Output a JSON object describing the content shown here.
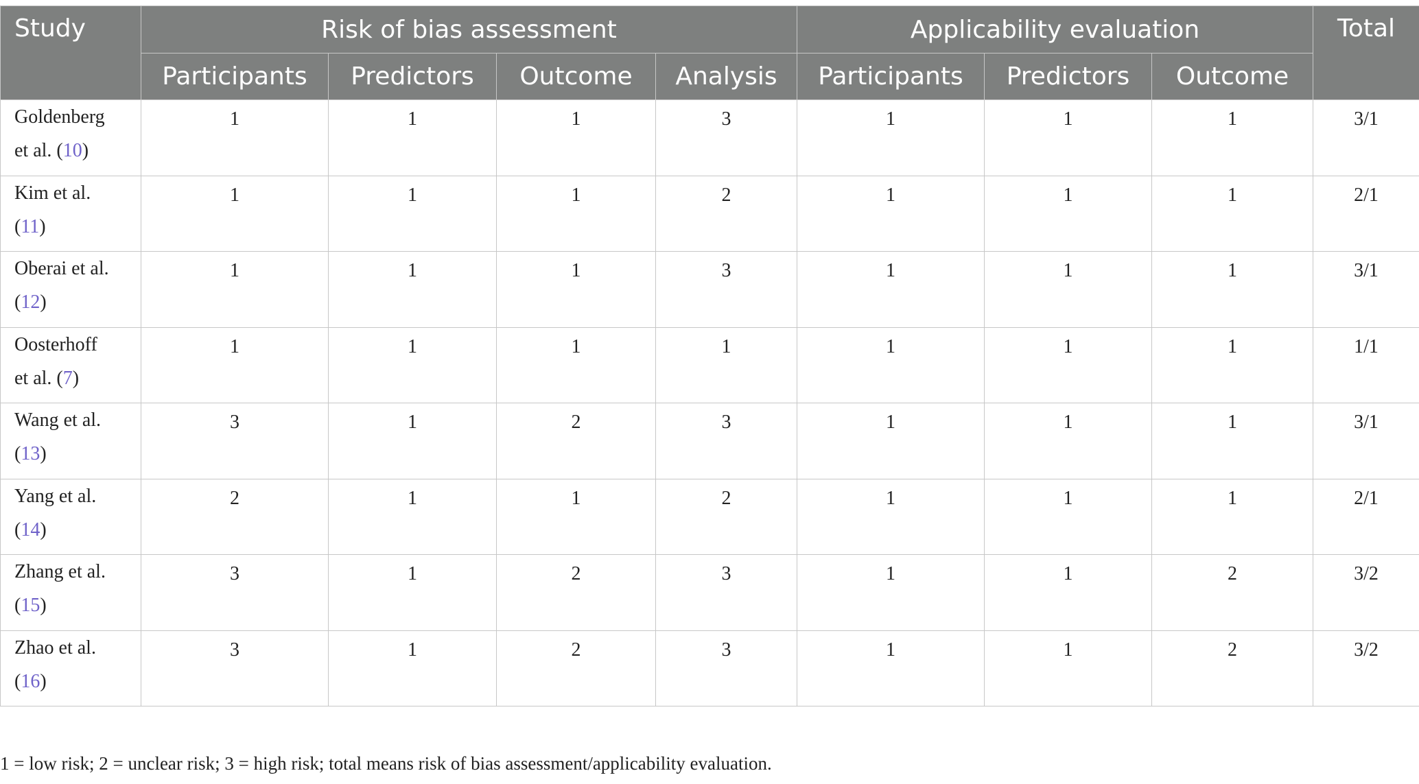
{
  "header": {
    "study": "Study",
    "group_risk": "Risk of bias assessment",
    "group_applicability": "Applicability evaluation",
    "total": "Total",
    "risk_columns": [
      "Participants",
      "Predictors",
      "Outcome",
      "Analysis"
    ],
    "applicability_columns": [
      "Participants",
      "Predictors",
      "Outcome"
    ]
  },
  "rows": [
    {
      "study_line1": "Goldenberg",
      "study_line2_prefix": "et al. (",
      "ref": "10",
      "suffix": ")",
      "values": [
        "1",
        "1",
        "1",
        "3",
        "1",
        "1",
        "1"
      ],
      "total": "3/1"
    },
    {
      "study_line1": "Kim et al.",
      "study_line2_prefix": "(",
      "ref": "11",
      "suffix": ")",
      "values": [
        "1",
        "1",
        "1",
        "2",
        "1",
        "1",
        "1"
      ],
      "total": "2/1"
    },
    {
      "study_line1": "Oberai et al.",
      "study_line2_prefix": "(",
      "ref": "12",
      "suffix": ")",
      "values": [
        "1",
        "1",
        "1",
        "3",
        "1",
        "1",
        "1"
      ],
      "total": "3/1"
    },
    {
      "study_line1": "Oosterhoff",
      "study_line2_prefix": "et al. (",
      "ref": "7",
      "suffix": ")",
      "values": [
        "1",
        "1",
        "1",
        "1",
        "1",
        "1",
        "1"
      ],
      "total": "1/1"
    },
    {
      "study_line1": "Wang et al.",
      "study_line2_prefix": "(",
      "ref": "13",
      "suffix": ")",
      "values": [
        "3",
        "1",
        "2",
        "3",
        "1",
        "1",
        "1"
      ],
      "total": "3/1"
    },
    {
      "study_line1": "Yang et al.",
      "study_line2_prefix": "(",
      "ref": "14",
      "suffix": ")",
      "values": [
        "2",
        "1",
        "1",
        "2",
        "1",
        "1",
        "1"
      ],
      "total": "2/1"
    },
    {
      "study_line1": "Zhang et al.",
      "study_line2_prefix": "(",
      "ref": "15",
      "suffix": ")",
      "values": [
        "3",
        "1",
        "2",
        "3",
        "1",
        "1",
        "2"
      ],
      "total": "3/2"
    },
    {
      "study_line1": "Zhao et al.",
      "study_line2_prefix": "(",
      "ref": "16",
      "suffix": ")",
      "values": [
        "3",
        "1",
        "2",
        "3",
        "1",
        "1",
        "2"
      ],
      "total": "3/2"
    }
  ],
  "footnote": "1 = low risk; 2 = unclear risk; 3 = high risk; total means risk of bias assessment/applicability evaluation.",
  "colors": {
    "header_bg": "#7e807f",
    "header_text": "#ffffff",
    "grid": "#c7c7c7",
    "ref_link": "#6f62c9"
  }
}
